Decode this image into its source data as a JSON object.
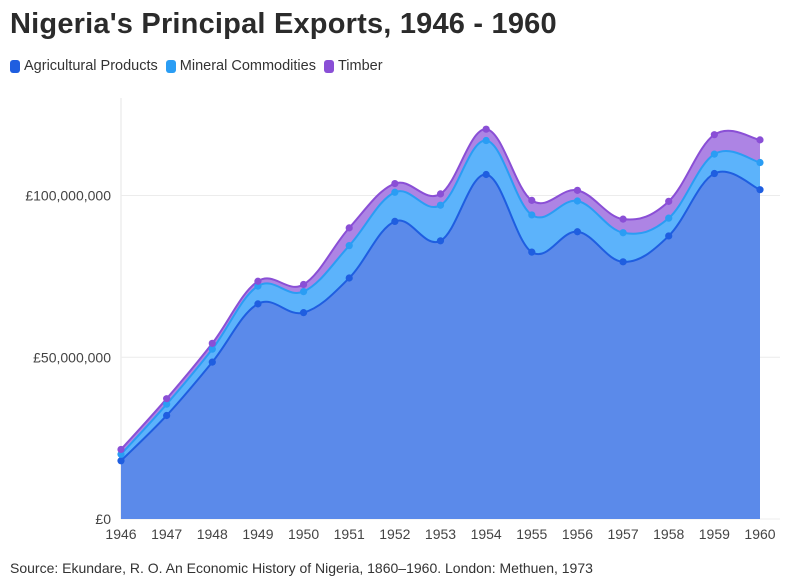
{
  "chart_data": {
    "type": "area",
    "stacked": true,
    "title": "Nigeria's Principal Exports, 1946 - 1960",
    "source": "Source: Ekundare, R. O. An Economic History of Nigeria, 1860–1960. London: Methuen, 1973",
    "x": [
      "1946",
      "1947",
      "1948",
      "1949",
      "1950",
      "1951",
      "1952",
      "1953",
      "1954",
      "1955",
      "1956",
      "1957",
      "1958",
      "1959",
      "1960"
    ],
    "y_ticks": [
      {
        "value": 0,
        "label": "£0"
      },
      {
        "value": 50000000,
        "label": "£50,000,000"
      },
      {
        "value": 100000000,
        "label": "£100,000,000"
      }
    ],
    "ylim": [
      0,
      132000000
    ],
    "grid": true,
    "legend_position": "top-left",
    "series": [
      {
        "name": "Agricultural Products",
        "color": "#1f5ee0",
        "fill": "#5b8aea",
        "values": [
          18000000,
          32000000,
          48500000,
          66500000,
          63800000,
          74500000,
          92000000,
          86000000,
          106500000,
          82500000,
          88800000,
          79500000,
          87500000,
          106800000,
          101800000
        ]
      },
      {
        "name": "Mineral Commodities",
        "color": "#2a9df4",
        "fill": "#5cb3fb",
        "values": [
          2000000,
          3500000,
          4000000,
          5500000,
          6500000,
          10000000,
          9000000,
          11000000,
          10500000,
          11500000,
          9500000,
          9000000,
          5500000,
          6000000,
          8400000
        ]
      },
      {
        "name": "Timber",
        "color": "#8a4fd6",
        "fill": "#ad84e4",
        "values": [
          1500000,
          1700000,
          1800000,
          1500000,
          2200000,
          5500000,
          2700000,
          3500000,
          3500000,
          4500000,
          3300000,
          4200000,
          5200000,
          6000000,
          7000000
        ]
      }
    ]
  }
}
